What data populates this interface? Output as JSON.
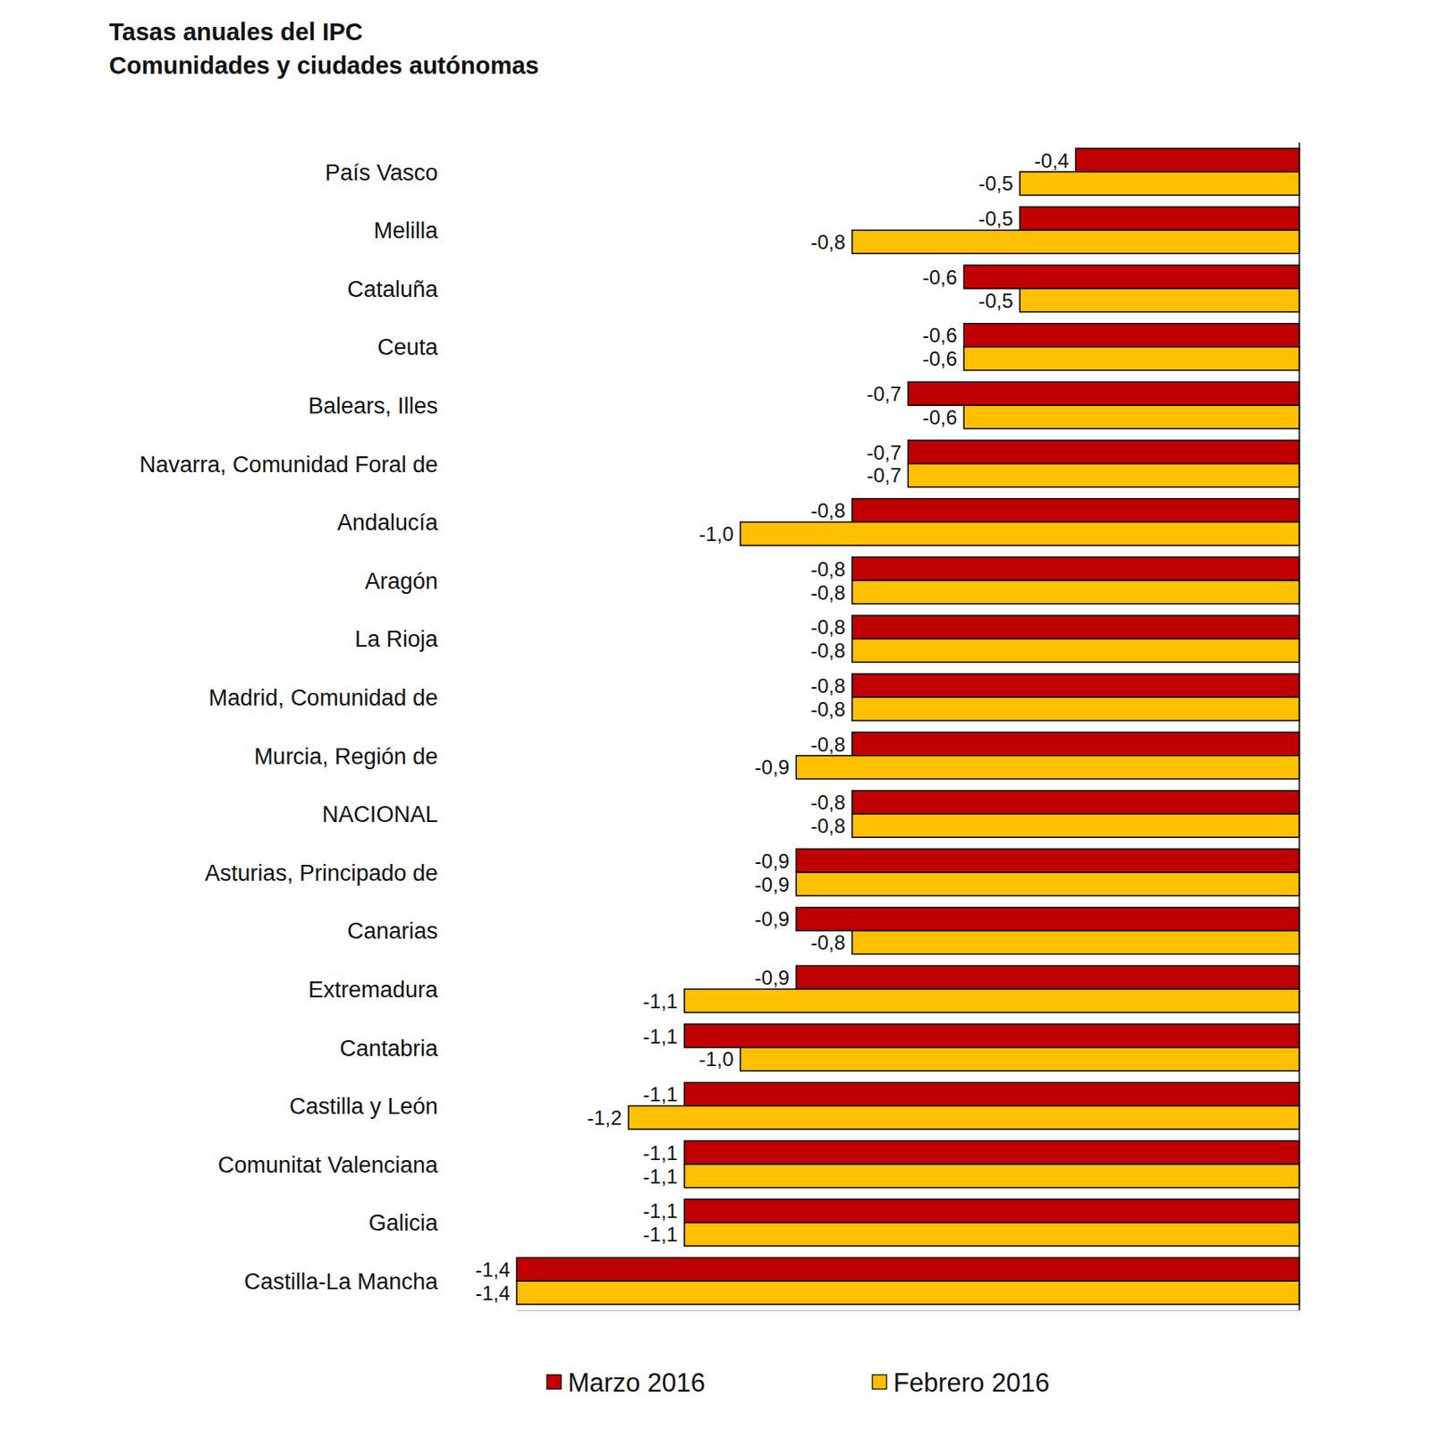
{
  "chart_data": {
    "type": "bar",
    "orientation": "horizontal",
    "title": "Tasas anuales del IPC",
    "subtitle": "Comunidades y ciudades autónomas",
    "categories": [
      "País Vasco",
      "Melilla",
      "Cataluña",
      "Ceuta",
      "Balears, Illes",
      "Navarra, Comunidad Foral de",
      "Andalucía",
      "Aragón",
      "La Rioja",
      "Madrid, Comunidad de",
      "Murcia, Región de",
      "NACIONAL",
      "Asturias, Principado de",
      "Canarias",
      "Extremadura",
      "Cantabria",
      "Castilla y León",
      "Comunitat Valenciana",
      "Galicia",
      "Castilla-La Mancha"
    ],
    "series": [
      {
        "name": "Marzo 2016",
        "color": "#c00000",
        "values": [
          -0.4,
          -0.5,
          -0.6,
          -0.6,
          -0.7,
          -0.7,
          -0.8,
          -0.8,
          -0.8,
          -0.8,
          -0.8,
          -0.8,
          -0.9,
          -0.9,
          -0.9,
          -1.1,
          -1.1,
          -1.1,
          -1.1,
          -1.4
        ],
        "value_labels": [
          "-0,4",
          "-0,5",
          "-0,6",
          "-0,6",
          "-0,7",
          "-0,7",
          "-0,8",
          "-0,8",
          "-0,8",
          "-0,8",
          "-0,8",
          "-0,8",
          "-0,9",
          "-0,9",
          "-0,9",
          "-1,1",
          "-1,1",
          "-1,1",
          "-1,1",
          "-1,4"
        ]
      },
      {
        "name": "Febrero 2016",
        "color": "#ffc000",
        "values": [
          -0.5,
          -0.8,
          -0.5,
          -0.6,
          -0.6,
          -0.7,
          -1.0,
          -0.8,
          -0.8,
          -0.8,
          -0.9,
          -0.8,
          -0.9,
          -0.8,
          -1.1,
          -1.0,
          -1.2,
          -1.1,
          -1.1,
          -1.4
        ],
        "value_labels": [
          "-0,5",
          "-0,8",
          "-0,5",
          "-0,6",
          "-0,6",
          "-0,7",
          "-1,0",
          "-0,8",
          "-0,8",
          "-0,8",
          "-0,9",
          "-0,8",
          "-0,9",
          "-0,8",
          "-1,1",
          "-1,0",
          "-1,2",
          "-1,1",
          "-1,1",
          "-1,4"
        ]
      }
    ],
    "xlim": [
      -1.4,
      0
    ],
    "tick_labels": false,
    "data_labels": true,
    "legend": "bottom",
    "grid": false
  }
}
